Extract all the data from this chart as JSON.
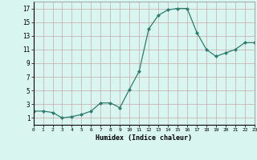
{
  "x": [
    0,
    1,
    2,
    3,
    4,
    5,
    6,
    7,
    8,
    9,
    10,
    11,
    12,
    13,
    14,
    15,
    16,
    17,
    18,
    19,
    20,
    21,
    22,
    23
  ],
  "y": [
    2,
    2,
    1.8,
    1,
    1.2,
    1.5,
    2,
    3.2,
    3.2,
    2.5,
    5.2,
    7.8,
    14,
    16,
    16.8,
    17,
    17,
    13.5,
    11,
    10,
    10.5,
    11,
    12,
    12
  ],
  "line_color": "#2d7d6e",
  "marker_color": "#2d7d6e",
  "bg_color": "#d8f5f0",
  "grid_color": "#c8a8a8",
  "xlabel": "Humidex (Indice chaleur)",
  "yticks": [
    1,
    3,
    5,
    7,
    9,
    11,
    13,
    15,
    17
  ],
  "xticks": [
    0,
    1,
    2,
    3,
    4,
    5,
    6,
    7,
    8,
    9,
    10,
    11,
    12,
    13,
    14,
    15,
    16,
    17,
    18,
    19,
    20,
    21,
    22,
    23
  ],
  "ylim": [
    0,
    18
  ],
  "xlim": [
    0,
    23
  ]
}
